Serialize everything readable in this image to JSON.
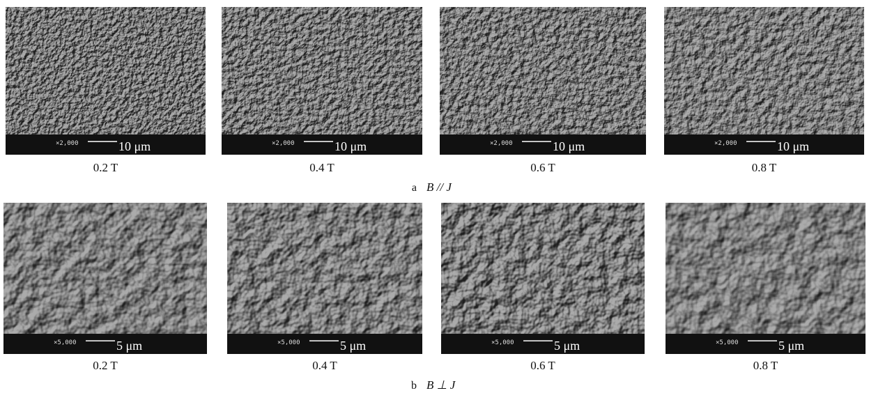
{
  "figure": {
    "rows": [
      {
        "label": "a",
        "condition": "B // J",
        "panels": [
          {
            "magnification": "×2,000",
            "scale": "10 μm",
            "caption": "0.2 T"
          },
          {
            "magnification": "×2,000",
            "scale": "10 μm",
            "caption": "0.4 T"
          },
          {
            "magnification": "×2,000",
            "scale": "10 μm",
            "caption": "0.6 T"
          },
          {
            "magnification": "×2,000",
            "scale": "10 μm",
            "caption": "0.8 T"
          }
        ]
      },
      {
        "label": "b",
        "condition": "B ⊥ J",
        "panels": [
          {
            "magnification": "×5,000",
            "scale": "5 μm",
            "caption": "0.2 T"
          },
          {
            "magnification": "×5,000",
            "scale": "5 μm",
            "caption": "0.4 T"
          },
          {
            "magnification": "×5,000",
            "scale": "5 μm",
            "caption": "0.6 T"
          },
          {
            "magnification": "×5,000",
            "scale": "5 μm",
            "caption": "0.8 T"
          }
        ]
      }
    ]
  }
}
